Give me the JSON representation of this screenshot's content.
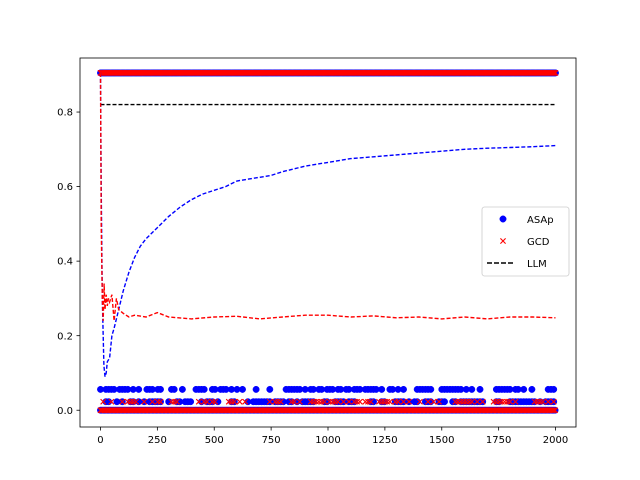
{
  "chart_data": {
    "type": "scatter",
    "title": "",
    "xlabel": "",
    "ylabel": "",
    "xlim": [
      -90,
      2090
    ],
    "ylim": [
      -0.045,
      0.945
    ],
    "xticks": [
      0,
      250,
      500,
      750,
      1000,
      1250,
      1500,
      1750,
      2000
    ],
    "xtick_labels": [
      "0",
      "250",
      "500",
      "750",
      "1000",
      "1250",
      "1500",
      "1750",
      "2000"
    ],
    "yticks": [
      0.0,
      0.2,
      0.4,
      0.6,
      0.8
    ],
    "ytick_labels": [
      "0.0",
      "0.2",
      "0.4",
      "0.6",
      "0.8"
    ],
    "grid": false,
    "legend": {
      "position": "center-right",
      "entries": [
        {
          "label": "ASAp",
          "marker": "circle",
          "color": "#0000ff"
        },
        {
          "label": "GCD",
          "marker": "x",
          "color": "#ff0000"
        },
        {
          "label": "LLM",
          "marker": "dashed-line",
          "color": "#000000"
        }
      ]
    },
    "series": [
      {
        "name": "ASAp",
        "kind": "scatter",
        "marker": "circle",
        "color": "#0000ff",
        "levels": [
          0.905,
          0.056,
          0.023,
          0.0
        ],
        "x_range": [
          0,
          2000
        ]
      },
      {
        "name": "GCD",
        "kind": "scatter",
        "marker": "x",
        "color": "#ff0000",
        "levels": [
          0.905,
          0.023,
          0.0
        ],
        "x_range": [
          0,
          2000
        ]
      },
      {
        "name": "LLM",
        "kind": "line",
        "style": "dashed",
        "color": "#000000",
        "x": [
          0,
          2000
        ],
        "y": [
          0.82,
          0.82
        ]
      },
      {
        "kind": "line",
        "style": "dashed",
        "color": "#0000ff",
        "x": [
          0,
          3,
          8,
          15,
          20,
          25,
          30,
          40,
          50,
          60,
          80,
          100,
          125,
          150,
          175,
          200,
          250,
          300,
          350,
          400,
          450,
          500,
          550,
          600,
          650,
          700,
          750,
          800,
          900,
          1000,
          1100,
          1200,
          1300,
          1400,
          1500,
          1600,
          1700,
          1800,
          1900,
          2000
        ],
        "y": [
          0.905,
          0.6,
          0.3,
          0.12,
          0.09,
          0.1,
          0.13,
          0.14,
          0.2,
          0.22,
          0.27,
          0.32,
          0.37,
          0.41,
          0.44,
          0.46,
          0.49,
          0.52,
          0.545,
          0.565,
          0.58,
          0.59,
          0.6,
          0.615,
          0.62,
          0.625,
          0.63,
          0.64,
          0.655,
          0.665,
          0.675,
          0.68,
          0.685,
          0.69,
          0.695,
          0.7,
          0.703,
          0.705,
          0.707,
          0.71
        ]
      },
      {
        "kind": "line",
        "style": "dashed",
        "color": "#ff0000",
        "x": [
          0,
          3,
          8,
          12,
          16,
          20,
          25,
          30,
          35,
          40,
          50,
          60,
          70,
          80,
          100,
          125,
          150,
          200,
          250,
          300,
          400,
          500,
          600,
          700,
          800,
          900,
          1000,
          1100,
          1200,
          1300,
          1400,
          1500,
          1600,
          1700,
          1800,
          1900,
          2000
        ],
        "y": [
          0.905,
          0.5,
          0.3,
          0.24,
          0.34,
          0.27,
          0.31,
          0.28,
          0.3,
          0.29,
          0.31,
          0.24,
          0.3,
          0.27,
          0.26,
          0.25,
          0.255,
          0.25,
          0.262,
          0.25,
          0.245,
          0.25,
          0.252,
          0.245,
          0.25,
          0.255,
          0.255,
          0.25,
          0.253,
          0.248,
          0.25,
          0.245,
          0.25,
          0.245,
          0.25,
          0.25,
          0.248
        ]
      }
    ]
  }
}
